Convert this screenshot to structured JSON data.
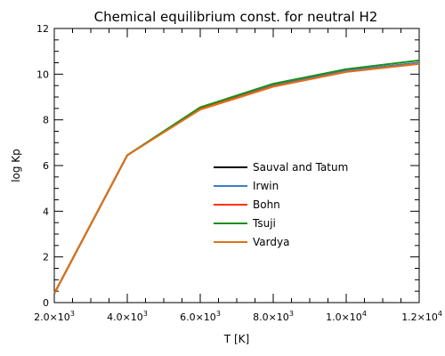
{
  "chart_data": {
    "type": "line",
    "title": "Chemical equilibrium const. for neutral H2",
    "xlabel": "T [K]",
    "ylabel": "log Kp",
    "xlim": [
      2000,
      12000
    ],
    "ylim": [
      0,
      12
    ],
    "x_ticks": [
      {
        "value": 2000,
        "mant": "2.0",
        "exp": "3"
      },
      {
        "value": 4000,
        "mant": "4.0",
        "exp": "3"
      },
      {
        "value": 6000,
        "mant": "6.0",
        "exp": "3"
      },
      {
        "value": 8000,
        "mant": "8.0",
        "exp": "3"
      },
      {
        "value": 10000,
        "mant": "1.0",
        "exp": "4"
      },
      {
        "value": 12000,
        "mant": "1.2",
        "exp": "4"
      }
    ],
    "x_multiplier": "×10",
    "y_ticks": [
      {
        "value": 0,
        "label": "0"
      },
      {
        "value": 2,
        "label": "2"
      },
      {
        "value": 4,
        "label": "4"
      },
      {
        "value": 6,
        "label": "6"
      },
      {
        "value": 8,
        "label": "8"
      },
      {
        "value": 10,
        "label": "10"
      },
      {
        "value": 12,
        "label": "12"
      }
    ],
    "grid": false,
    "legend_position": "center-right",
    "series": [
      {
        "name": "Sauval and Tatum",
        "color": "#000000",
        "x": [
          2000,
          4000,
          6000,
          8000,
          10000,
          12000
        ],
        "values": [
          0.4,
          6.45,
          8.5,
          9.5,
          10.15,
          10.5
        ]
      },
      {
        "name": "Irwin",
        "color": "#3f7fbf",
        "x": [
          2000,
          4000,
          6000,
          8000,
          10000,
          12000
        ],
        "values": [
          0.4,
          6.45,
          8.5,
          9.5,
          10.15,
          10.5
        ]
      },
      {
        "name": "Bohn",
        "color": "#ff3300",
        "x": [
          2000,
          4000,
          6000,
          8000,
          10000,
          12000
        ],
        "values": [
          0.4,
          6.45,
          8.48,
          9.47,
          10.1,
          10.45
        ]
      },
      {
        "name": "Tsuji",
        "color": "#1a8f1a",
        "x": [
          2000,
          4000,
          6000,
          8000,
          10000,
          12000
        ],
        "values": [
          0.4,
          6.45,
          8.55,
          9.58,
          10.22,
          10.6
        ]
      },
      {
        "name": "Vardya",
        "color": "#e0701a",
        "x": [
          2000,
          4000,
          6000,
          8000,
          10000,
          12000
        ],
        "values": [
          0.4,
          6.45,
          8.45,
          9.45,
          10.1,
          10.45
        ]
      }
    ]
  }
}
